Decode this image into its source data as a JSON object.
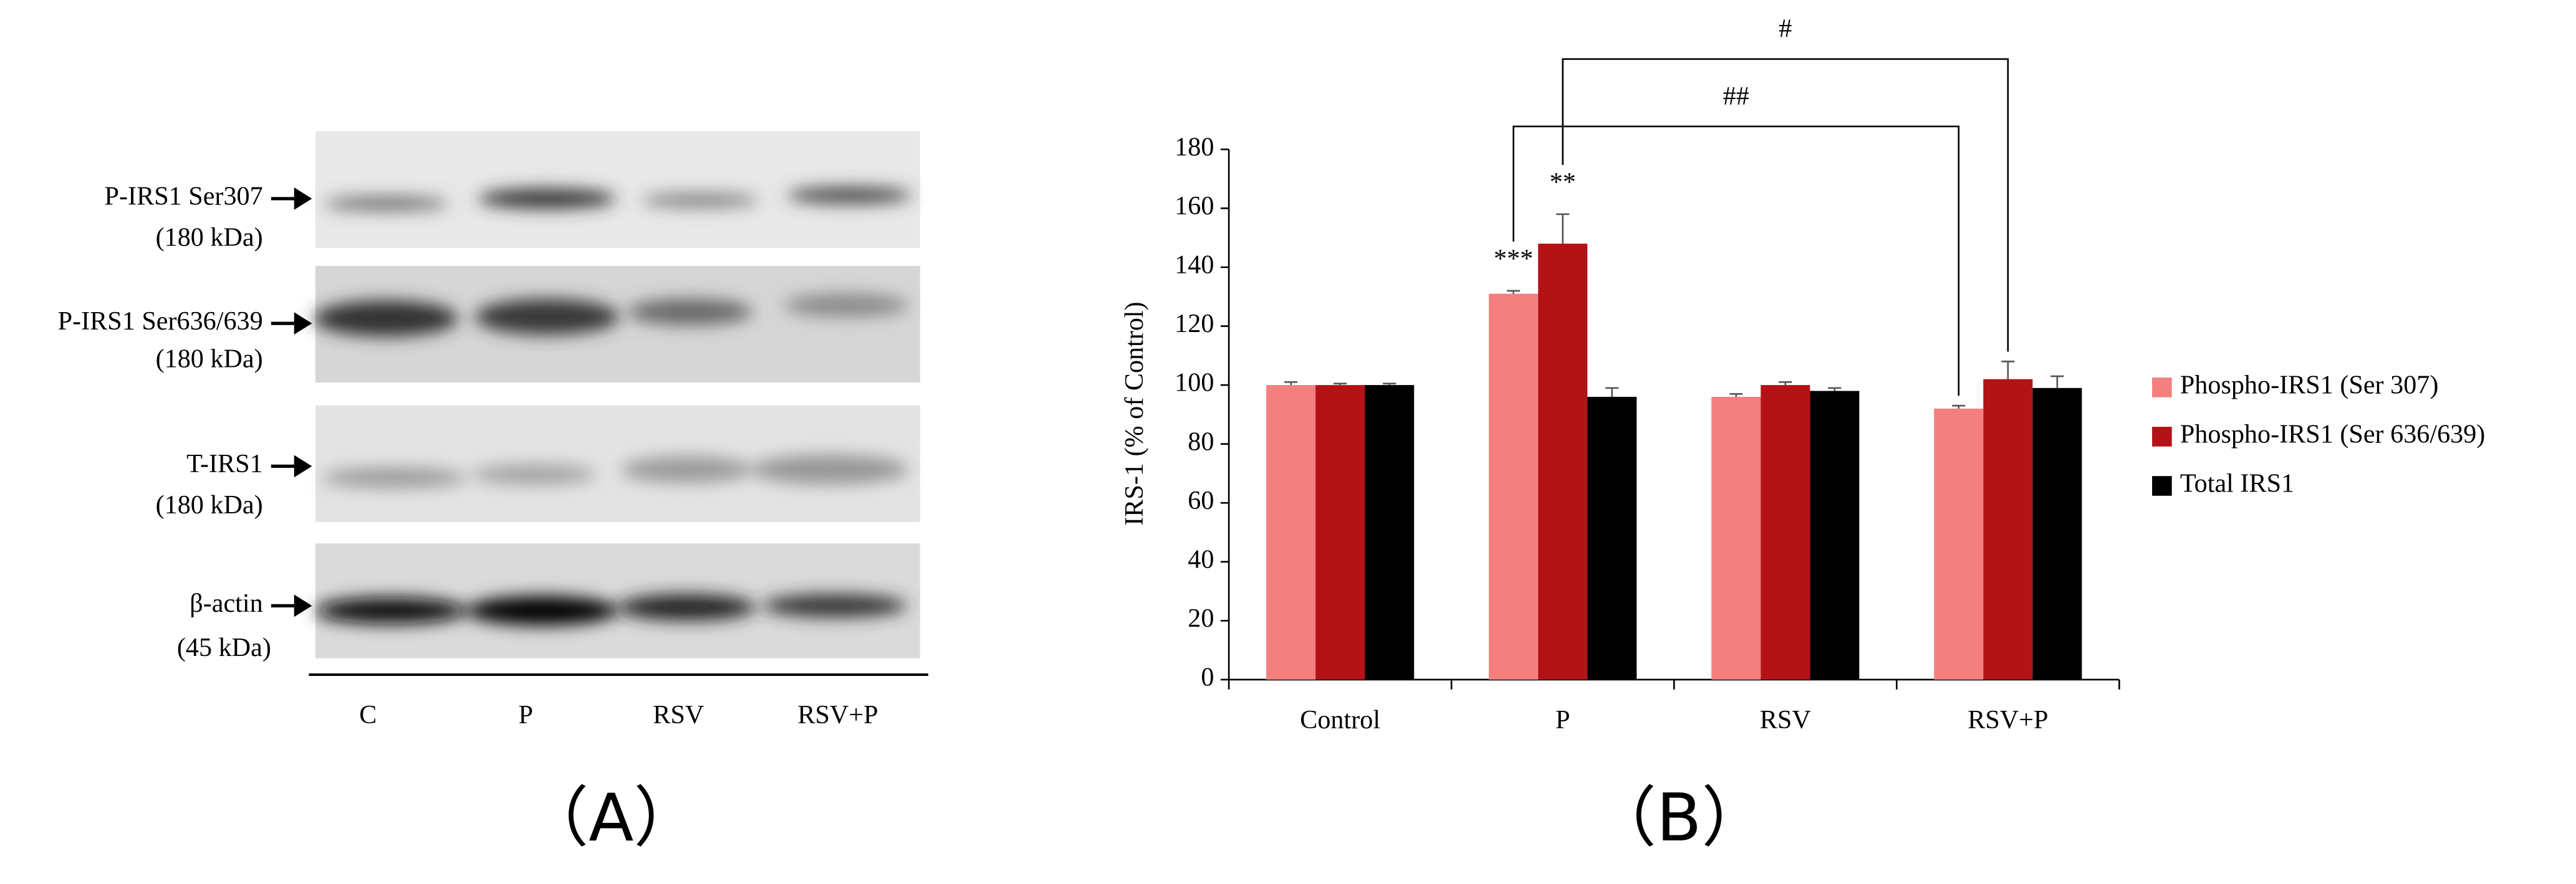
{
  "panel_a": {
    "rows": [
      {
        "label": "P-IRS1 Ser307",
        "size": "(180 kDa)"
      },
      {
        "label": "P-IRS1 Ser636/639",
        "size": "(180 kDa)"
      },
      {
        "label": "T-IRS1",
        "size": "(180 kDa)"
      },
      {
        "label": "β-actin",
        "size": "(45 kDa)"
      }
    ],
    "lanes": [
      "C",
      "P",
      "RSV",
      "RSV+P"
    ],
    "panel_label": "（A）"
  },
  "chart_data": {
    "type": "bar",
    "panel_label": "（B）",
    "y_label": "IRS-1 (% of Control)",
    "categories": [
      "Control",
      "P",
      "RSV",
      "RSV+P"
    ],
    "series": [
      {
        "name": "Phospho-IRS1 (Ser 307)",
        "color": "#f47f7f",
        "values": [
          100,
          131,
          96,
          92
        ],
        "errors": [
          1,
          1,
          1,
          1
        ]
      },
      {
        "name": "Phospho-IRS1 (Ser 636/639)",
        "color": "#b31217",
        "values": [
          100,
          148,
          100,
          102
        ],
        "errors": [
          0.5,
          10,
          1,
          6
        ]
      },
      {
        "name": "Total IRS1",
        "color": "#000000",
        "values": [
          100,
          96,
          98,
          99
        ],
        "errors": [
          0.5,
          3,
          1,
          4
        ]
      }
    ],
    "annotations": [
      "***",
      "**",
      "##",
      "#"
    ],
    "ylim": [
      0,
      180
    ],
    "yticks": [
      0,
      20,
      40,
      60,
      80,
      100,
      120,
      140,
      160,
      180
    ],
    "grid": false,
    "legend": "right"
  }
}
